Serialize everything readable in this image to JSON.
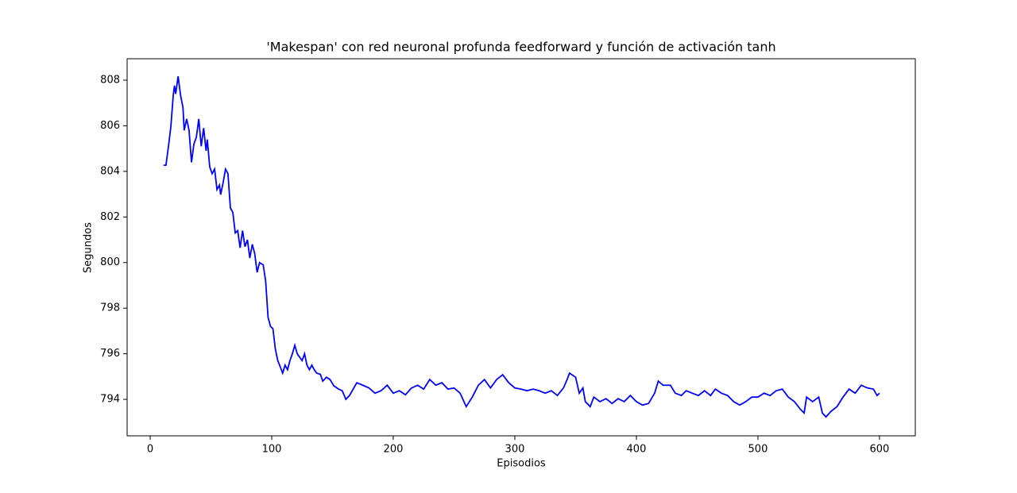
{
  "chart_data": {
    "type": "line",
    "title": "'Makespan' con red neuronal profunda feedforward y función de activación tanh",
    "x_label": "Episodios",
    "y_label": "Segundos",
    "x": [
      11,
      13,
      15,
      17,
      19,
      20,
      21,
      23,
      25,
      27,
      28,
      30,
      32,
      34,
      36,
      38,
      40,
      42,
      44,
      46,
      47,
      49,
      51,
      53,
      55,
      57,
      58,
      60,
      62,
      64,
      66,
      68,
      70,
      72,
      74,
      76,
      78,
      80,
      82,
      84,
      86,
      88,
      90,
      93,
      95,
      97,
      99,
      101,
      103,
      105,
      107,
      109,
      111,
      113,
      115,
      117,
      119,
      121,
      123,
      125,
      127,
      129,
      131,
      133,
      135,
      137,
      140,
      142,
      145,
      148,
      151,
      155,
      158,
      161,
      164,
      167,
      170,
      175,
      180,
      185,
      190,
      195,
      200,
      205,
      210,
      215,
      220,
      225,
      230,
      235,
      240,
      245,
      250,
      255,
      260,
      265,
      270,
      275,
      280,
      285,
      290,
      295,
      300,
      305,
      310,
      315,
      320,
      325,
      330,
      335,
      340,
      343,
      345,
      350,
      353,
      356,
      358,
      362,
      365,
      370,
      375,
      380,
      385,
      390,
      395,
      400,
      405,
      410,
      415,
      418,
      422,
      428,
      432,
      437,
      441,
      446,
      451,
      456,
      461,
      465,
      470,
      475,
      480,
      485,
      490,
      495,
      500,
      505,
      510,
      515,
      520,
      525,
      530,
      535,
      538,
      540,
      545,
      550,
      553,
      556,
      560,
      565,
      570,
      575,
      580,
      585,
      590,
      595,
      598,
      600
    ],
    "series": [
      {
        "name": "Makespan",
        "color": "#0000ff",
        "values": [
          804.27,
          804.27,
          805.07,
          805.95,
          807.34,
          807.76,
          807.4,
          808.17,
          807.34,
          806.8,
          805.8,
          806.3,
          805.8,
          804.4,
          805.2,
          805.5,
          806.3,
          805.1,
          805.9,
          804.9,
          805.4,
          804.2,
          803.9,
          804.1,
          803.2,
          803.4,
          802.98,
          803.5,
          804.1,
          803.9,
          802.4,
          802.2,
          801.3,
          801.4,
          800.65,
          801.4,
          800.7,
          801.0,
          800.2,
          800.8,
          800.4,
          799.57,
          800.0,
          799.9,
          799.2,
          797.6,
          797.2,
          797.1,
          796.2,
          795.7,
          795.43,
          795.15,
          795.5,
          795.3,
          795.7,
          796.0,
          796.37,
          796.0,
          795.85,
          795.7,
          796.0,
          795.5,
          795.3,
          795.5,
          795.3,
          795.15,
          795.1,
          794.8,
          794.97,
          794.87,
          794.6,
          794.45,
          794.38,
          794.0,
          794.17,
          794.45,
          794.73,
          794.62,
          794.5,
          794.27,
          794.38,
          794.62,
          794.27,
          794.38,
          794.2,
          794.5,
          794.62,
          794.45,
          794.87,
          794.62,
          794.73,
          794.45,
          794.5,
          794.27,
          793.68,
          794.1,
          794.62,
          794.87,
          794.5,
          794.87,
          795.08,
          794.73,
          794.5,
          794.45,
          794.38,
          794.45,
          794.38,
          794.27,
          794.38,
          794.17,
          794.5,
          794.87,
          795.15,
          794.97,
          794.27,
          794.5,
          793.9,
          793.68,
          794.1,
          793.9,
          794.03,
          793.82,
          794.03,
          793.9,
          794.17,
          793.9,
          793.75,
          793.82,
          794.27,
          794.8,
          794.62,
          794.62,
          794.27,
          794.17,
          794.38,
          794.27,
          794.17,
          794.38,
          794.17,
          794.45,
          794.27,
          794.17,
          793.9,
          793.75,
          793.9,
          794.1,
          794.1,
          794.27,
          794.17,
          794.38,
          794.45,
          794.1,
          793.9,
          793.56,
          793.4,
          794.1,
          793.9,
          794.1,
          793.4,
          793.23,
          793.47,
          793.68,
          794.1,
          794.45,
          794.27,
          794.62,
          794.5,
          794.45,
          794.17,
          794.27
        ]
      }
    ],
    "xlim": [
      -18.95,
      629.45
    ],
    "ylim": [
      792.4,
      808.94
    ],
    "xticks": [
      0,
      100,
      200,
      300,
      400,
      500,
      600
    ],
    "yticks": [
      794,
      796,
      798,
      800,
      802,
      804,
      806,
      808
    ]
  }
}
